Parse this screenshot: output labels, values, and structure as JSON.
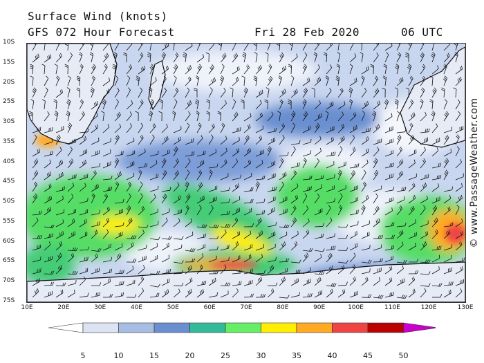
{
  "header": {
    "title": "Surface Wind (knots)",
    "subtitle": "GFS 072 Hour Forecast",
    "date": "Fri 28 Feb 2020",
    "time": "06 UTC"
  },
  "credit": "© www.PassageWeather.com",
  "map": {
    "lat_labels": [
      "10S",
      "15S",
      "20S",
      "25S",
      "30S",
      "35S",
      "40S",
      "45S",
      "50S",
      "55S",
      "60S",
      "65S",
      "70S",
      "75S"
    ],
    "lon_labels": [
      "10E",
      "20E",
      "30E",
      "40E",
      "50E",
      "60E",
      "70E",
      "80E",
      "90E",
      "100E",
      "110E",
      "120E",
      "130E"
    ],
    "lat_range": [
      -10,
      -75
    ],
    "lon_range": [
      10,
      130
    ]
  },
  "legend": {
    "labels": [
      "5",
      "10",
      "15",
      "20",
      "25",
      "30",
      "35",
      "40",
      "45",
      "50"
    ],
    "colors": [
      "#ffffff",
      "#dce3f3",
      "#a8bde3",
      "#6a8fd0",
      "#33bb99",
      "#66ee66",
      "#ffee00",
      "#ffaa22",
      "#ee4444",
      "#bb0000",
      "#cc00cc"
    ]
  }
}
